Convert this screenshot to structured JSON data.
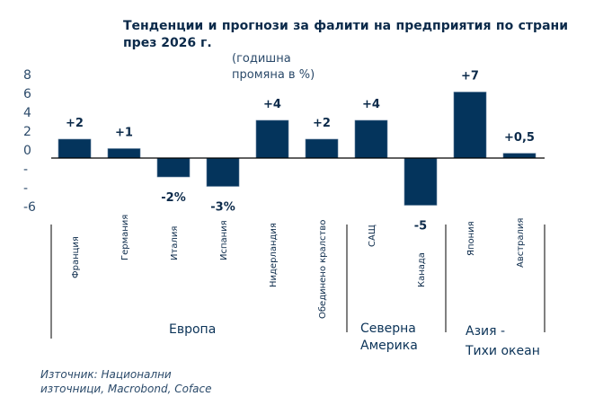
{
  "title": "Тенденции и прогнози за фалити на предприятия по страни през 2026 г.",
  "subtitle_line1": "(годишна",
  "subtitle_line2": "промяна в %)",
  "source_line1": "Източник: Национални",
  "source_line2": "източници, Macrobond, Coface",
  "groups": {
    "europe": "Европа",
    "na_line1": "Северна",
    "na_line2": "Америка",
    "apac_line1": "Азия -",
    "apac_line2": "Тихи океан"
  },
  "chart_data": {
    "type": "bar",
    "title": "Тенденции и прогнози за фалити на предприятия по страни през 2026 г.",
    "ylabel": "(годишна промяна в %)",
    "categories": [
      "Франция",
      "Германия",
      "Италия",
      "Испания",
      "Нидерландия",
      "Обединено кралство",
      "САЩ",
      "Канада",
      "Япония",
      "Австралия"
    ],
    "values": [
      2,
      1,
      -2,
      -3,
      4,
      2,
      4,
      -5,
      7,
      0.5
    ],
    "data_labels": [
      "+2",
      "+1",
      "-2%",
      "-3%",
      "+4",
      "+2",
      "+4",
      "-5",
      "+7",
      "+0,5"
    ],
    "y_ticks": [
      "8",
      "6",
      "4",
      "2",
      "0",
      "-",
      "-",
      "-6"
    ],
    "ylim": [
      -6,
      8
    ],
    "color": "#04345c"
  }
}
